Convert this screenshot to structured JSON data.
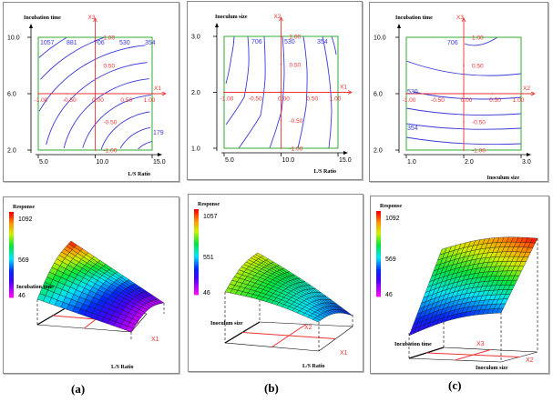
{
  "figure": {
    "captions": [
      "(a)",
      "(b)",
      "(c)"
    ]
  },
  "colors": {
    "contour": "#3a3ad8",
    "coded_axis": "#ee3333",
    "design_box": "#33aa33",
    "axis": "#000000"
  },
  "chart_data": [
    {
      "type": "contour",
      "panel": "a-top",
      "xlabel": "L/S Ratio",
      "ylabel": "Incubation time",
      "x_ticks": [
        "5.0",
        "10.0",
        "15.0"
      ],
      "y_ticks": [
        "2.0",
        "6.0",
        "10.0"
      ],
      "xlim": [
        5.0,
        15.0
      ],
      "ylim": [
        2.0,
        10.0
      ],
      "coded_x_name": "X1",
      "coded_y_name": "X3",
      "coded_x_ticks": [
        "-1.00",
        "-0.50",
        "0.00",
        "0.50",
        "1.00"
      ],
      "coded_y_ticks": [
        "1.00",
        "0.50",
        "-0.50",
        "-1.00"
      ],
      "contour_labels": [
        "1057",
        "881",
        "706",
        "530",
        "354",
        "179"
      ]
    },
    {
      "type": "contour",
      "panel": "b-top",
      "xlabel": "L/S Ratio",
      "ylabel": "Inoculum size",
      "x_ticks": [
        "5.0",
        "10.0",
        "15.0"
      ],
      "y_ticks": [
        "1.0",
        "2.0",
        "3.0"
      ],
      "xlim": [
        5.0,
        15.0
      ],
      "ylim": [
        1.0,
        3.0
      ],
      "coded_x_name": "X1",
      "coded_y_name": "X2",
      "coded_x_ticks": [
        "-1.00",
        "-0.50",
        "0.00",
        "0.50",
        "1.00"
      ],
      "coded_y_ticks": [
        "1.00",
        "0.50",
        "-0.50",
        "-1.00"
      ],
      "contour_labels": [
        "706",
        "530",
        "354"
      ]
    },
    {
      "type": "contour",
      "panel": "c-top",
      "xlabel": "Inoculum size",
      "ylabel": "Incubation time",
      "x_ticks": [
        "1.0",
        "2.0",
        "3.0"
      ],
      "y_ticks": [
        "2.0",
        "6.0",
        "10.0"
      ],
      "xlim": [
        1.0,
        3.0
      ],
      "ylim": [
        2.0,
        10.0
      ],
      "coded_x_name": "X2",
      "coded_y_name": "X3",
      "coded_x_ticks": [
        "-1.00",
        "-0.50",
        "0.00",
        "0.50",
        "1.00"
      ],
      "coded_y_ticks": [
        "1.00",
        "0.50",
        "-0.50",
        "-1.00"
      ],
      "contour_labels": [
        "706",
        "530",
        "354"
      ]
    },
    {
      "type": "surface",
      "panel": "a-bottom",
      "zlabel": "Response",
      "xlabel": "L/S Ratio",
      "ylabel": "Incubation time",
      "coded_x_name": "X1",
      "colorbar_ticks": [
        "1092",
        "569",
        "46"
      ],
      "zlim": [
        46,
        1092
      ]
    },
    {
      "type": "surface",
      "panel": "b-bottom",
      "zlabel": "Response",
      "xlabel": "L/S Ratio",
      "ylabel": "Inoculum size",
      "coded_x_name": "X1",
      "coded_y_name": "X2",
      "colorbar_ticks": [
        "1057",
        "551",
        "46"
      ],
      "zlim": [
        46,
        1057
      ]
    },
    {
      "type": "surface",
      "panel": "c-bottom",
      "zlabel": "Response",
      "xlabel": "Inoculum size",
      "ylabel": "Incubation time",
      "coded_x_name": "X2",
      "coded_y_name": "X3",
      "colorbar_ticks": [
        "1092",
        "569",
        "46"
      ],
      "zlim": [
        46,
        1092
      ]
    }
  ]
}
